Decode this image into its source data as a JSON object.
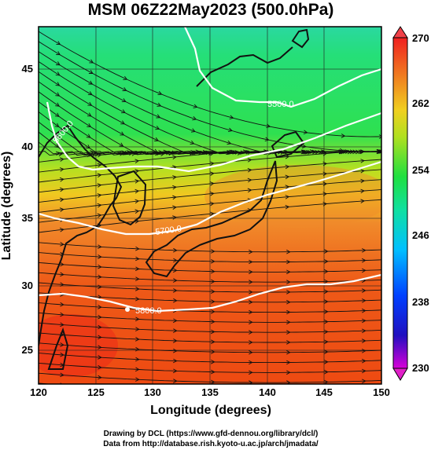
{
  "title": "MSM 06Z22May2023 (500.0hPa)",
  "xlabel": "Longitude (degrees)",
  "ylabel": "Latitude  (degrees)",
  "x_ticks": [
    "120",
    "125",
    "130",
    "135",
    "140",
    "145",
    "150"
  ],
  "y_ticks": [
    "25",
    "30",
    "35",
    "40",
    "45"
  ],
  "colorbar_ticks": [
    "230",
    "238",
    "246",
    "254",
    "262",
    "270"
  ],
  "contour_labels": [
    "5500.0",
    "5600.0",
    "5700.0",
    "5800.0"
  ],
  "credit_line1": "Drawing by DCL (https://www.gfd-dennou.org/library/dcl/)",
  "credit_line2": "Data from http://database.rish.kyoto-u.ac.jp/arch/jmadata/",
  "colors": {
    "warm": "#ee4a12",
    "orange": "#f08a2a",
    "yellow": "#d8e21e",
    "green": "#22e05a",
    "teal": "#2ad8a0",
    "red": "#e8141e"
  },
  "icons": [
    "streamline-arrow-icon",
    "coastline-shape"
  ]
}
